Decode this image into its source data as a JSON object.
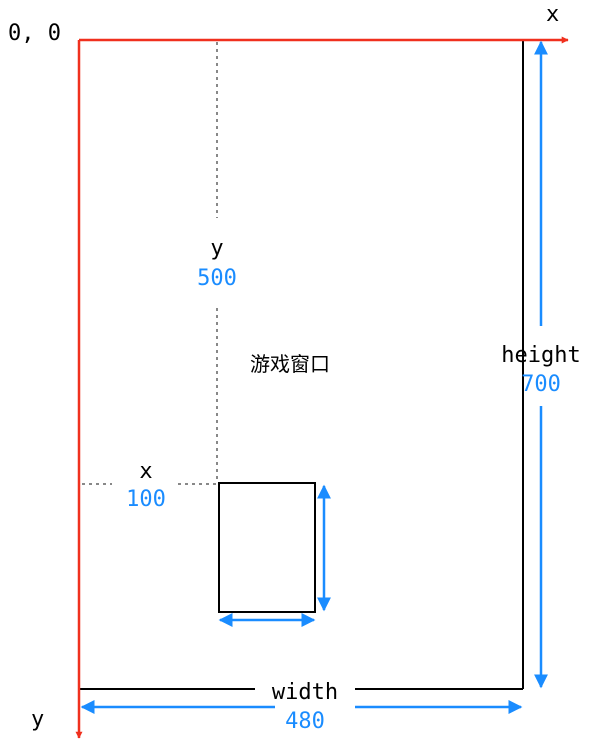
{
  "colors": {
    "axis": "#f0301e",
    "dimension": "#1a8cff",
    "outline": "#000000",
    "guide": "#888888"
  },
  "labels": {
    "origin": "0, 0",
    "x_axis": "x",
    "y_axis": "y",
    "window": "游戏窗口",
    "window_width_name": "width",
    "window_width_value": "480",
    "window_height_name": "height",
    "window_height_value": "700",
    "sprite_x_name": "x",
    "sprite_x_value": "100",
    "sprite_y_name": "y",
    "sprite_y_value": "500"
  }
}
